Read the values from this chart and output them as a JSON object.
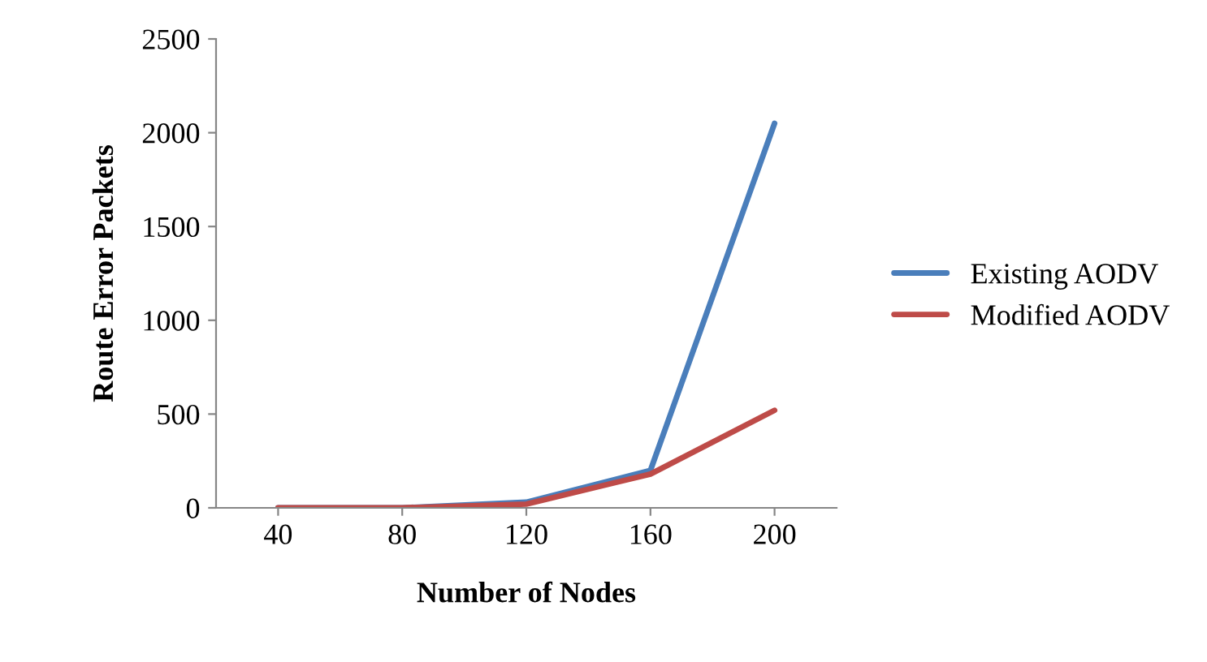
{
  "chart_data": {
    "type": "line",
    "xlabel": "Number of Nodes",
    "ylabel": "Route Error Packets",
    "categories": [
      "40",
      "80",
      "120",
      "160",
      "200"
    ],
    "series": [
      {
        "name": "Existing AODV",
        "color": "#4a7ebb",
        "values": [
          0,
          0,
          30,
          200,
          2050
        ]
      },
      {
        "name": "Modified AODV",
        "color": "#be4b48",
        "values": [
          0,
          0,
          20,
          180,
          520
        ]
      }
    ],
    "ylim": [
      0,
      2500
    ],
    "yticks": [
      0,
      500,
      1000,
      1500,
      2000,
      2500
    ],
    "grid": false,
    "legend": "right",
    "marker": "none",
    "line_style": "solid"
  }
}
